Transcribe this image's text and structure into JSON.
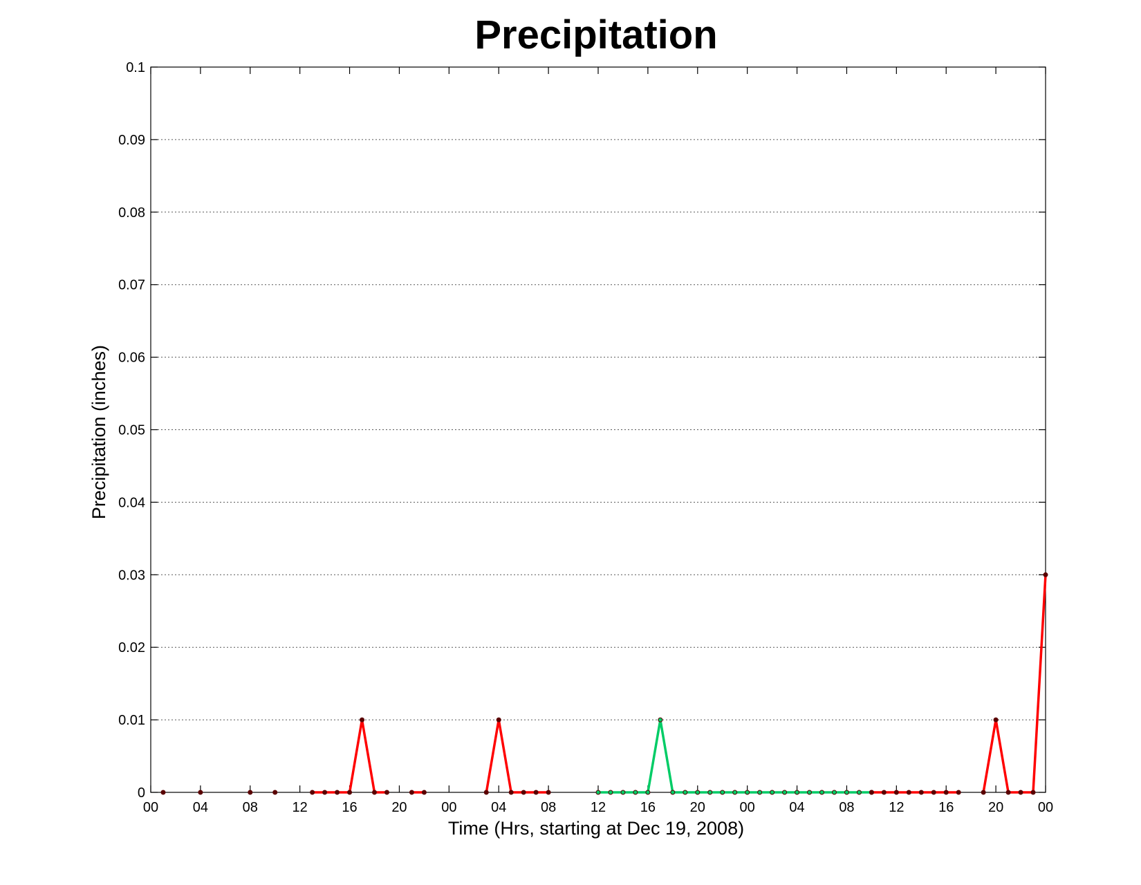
{
  "chart_data": {
    "type": "line",
    "title": "Precipitation",
    "xlabel": "Time (Hrs, starting at Dec 19, 2008)",
    "ylabel": "Precipitation (inches)",
    "xlim": [
      0,
      72
    ],
    "ylim": [
      0,
      0.1
    ],
    "grid": "y-dotted",
    "x_ticks": [
      0,
      4,
      8,
      12,
      16,
      20,
      24,
      28,
      32,
      36,
      40,
      44,
      48,
      52,
      56,
      60,
      64,
      68,
      72
    ],
    "x_tick_labels": [
      "00",
      "04",
      "08",
      "12",
      "16",
      "20",
      "00",
      "04",
      "08",
      "12",
      "16",
      "20",
      "00",
      "04",
      "08",
      "12",
      "16",
      "20",
      "00"
    ],
    "y_ticks": [
      0,
      0.01,
      0.02,
      0.03,
      0.04,
      0.05,
      0.06,
      0.07,
      0.08,
      0.09,
      0.1
    ],
    "y_tick_labels": [
      "0",
      "0.01",
      "0.02",
      "0.03",
      "0.04",
      "0.05",
      "0.06",
      "0.07",
      "0.08",
      "0.09",
      "0.1"
    ],
    "colors": {
      "red": "#ff0000",
      "green": "#00cc66",
      "marker": "#5a0000"
    },
    "segments": [
      {
        "color": "red",
        "points": [
          [
            1,
            0
          ]
        ]
      },
      {
        "color": "red",
        "points": [
          [
            4,
            0
          ]
        ]
      },
      {
        "color": "red",
        "points": [
          [
            8,
            0
          ]
        ]
      },
      {
        "color": "red",
        "points": [
          [
            10,
            0
          ]
        ]
      },
      {
        "color": "red",
        "points": [
          [
            13,
            0
          ],
          [
            14,
            0
          ],
          [
            15,
            0
          ],
          [
            16,
            0
          ],
          [
            17,
            0.01
          ],
          [
            18,
            0
          ],
          [
            19,
            0
          ]
        ]
      },
      {
        "color": "red",
        "points": [
          [
            21,
            0
          ],
          [
            22,
            0
          ]
        ]
      },
      {
        "color": "red",
        "points": [
          [
            27,
            0
          ],
          [
            28,
            0.01
          ],
          [
            29,
            0
          ],
          [
            30,
            0
          ],
          [
            31,
            0
          ],
          [
            32,
            0
          ]
        ]
      },
      {
        "color": "green",
        "points": [
          [
            36,
            0
          ],
          [
            37,
            0
          ],
          [
            38,
            0
          ],
          [
            39,
            0
          ],
          [
            40,
            0
          ],
          [
            41,
            0.01
          ],
          [
            42,
            0
          ],
          [
            43,
            0
          ],
          [
            44,
            0
          ],
          [
            45,
            0
          ],
          [
            46,
            0
          ],
          [
            47,
            0
          ],
          [
            48,
            0
          ],
          [
            49,
            0
          ],
          [
            50,
            0
          ],
          [
            51,
            0
          ],
          [
            52,
            0
          ],
          [
            53,
            0
          ],
          [
            54,
            0
          ],
          [
            55,
            0
          ],
          [
            56,
            0
          ],
          [
            57,
            0
          ],
          [
            58,
            0
          ]
        ]
      },
      {
        "color": "red",
        "points": [
          [
            58,
            0
          ],
          [
            59,
            0
          ],
          [
            60,
            0
          ],
          [
            61,
            0
          ],
          [
            62,
            0
          ],
          [
            63,
            0
          ],
          [
            64,
            0
          ],
          [
            65,
            0
          ]
        ]
      },
      {
        "color": "red",
        "points": [
          [
            67,
            0
          ],
          [
            68,
            0.01
          ],
          [
            69,
            0
          ],
          [
            70,
            0
          ],
          [
            71,
            0
          ],
          [
            72,
            0.03
          ]
        ]
      }
    ]
  }
}
